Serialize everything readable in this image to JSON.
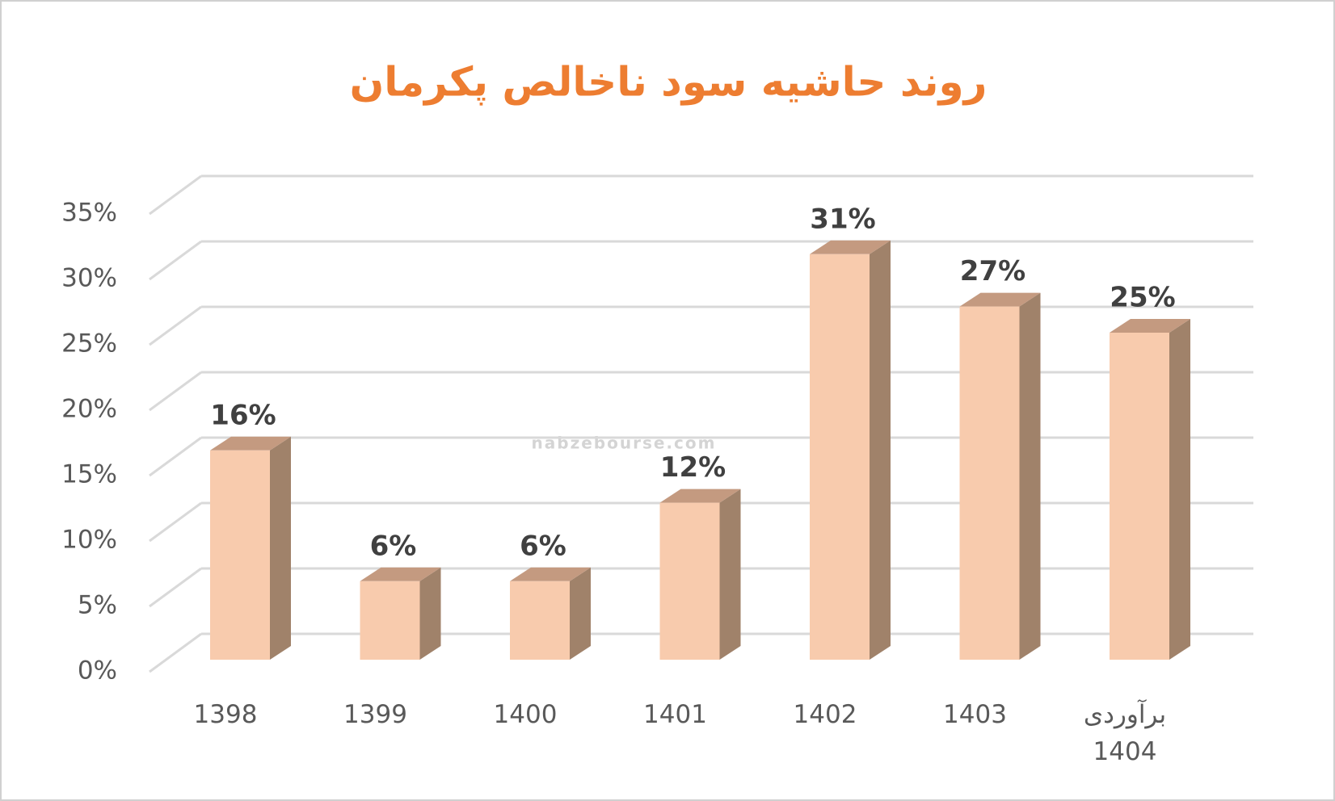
{
  "chart_data": {
    "type": "bar3d",
    "title": "روند حاشیه سود ناخالص پکرمان",
    "categories": [
      "1398",
      "1399",
      "1400",
      "1401",
      "1402",
      "1403",
      "برآوردی 1404"
    ],
    "values": [
      16,
      6,
      6,
      12,
      31,
      27,
      25
    ],
    "value_labels": [
      "16%",
      "6%",
      "6%",
      "12%",
      "31%",
      "27%",
      "25%"
    ],
    "colors": {
      "front": "#f8cbad",
      "top": "#c49a80",
      "side": "#a0826a"
    },
    "ylim": [
      0,
      35
    ],
    "yticks": [
      {
        "value": 0,
        "label": "0%"
      },
      {
        "value": 5,
        "label": "5%"
      },
      {
        "value": 10,
        "label": "10%"
      },
      {
        "value": 15,
        "label": "15%"
      },
      {
        "value": 20,
        "label": "20%"
      },
      {
        "value": 25,
        "label": "25%"
      },
      {
        "value": 30,
        "label": "30%"
      },
      {
        "value": 35,
        "label": "35%"
      }
    ],
    "grid": true,
    "watermark": "nabzebourse.com"
  }
}
